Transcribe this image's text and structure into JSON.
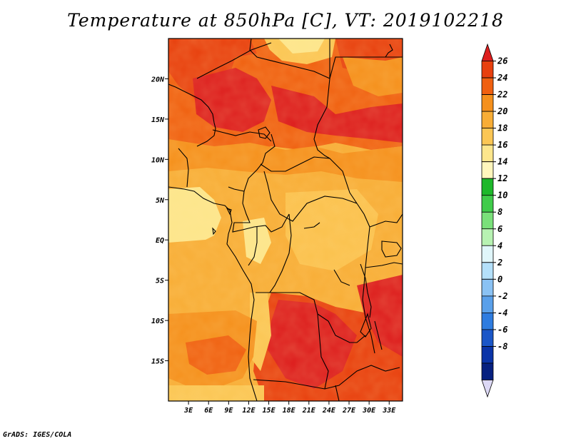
{
  "title": "Temperature at 850hPa [C], VT: 2019102218",
  "credit": "GrADS: IGES/COLA",
  "map": {
    "lon_range": [
      0,
      35
    ],
    "lat_range": [
      -20,
      25
    ],
    "variable": "Temperature at 850hPa",
    "units": "C",
    "valid_time": "2019102218",
    "x_ticks": [
      {
        "lon": 3,
        "label": "3E"
      },
      {
        "lon": 6,
        "label": "6E"
      },
      {
        "lon": 9,
        "label": "9E"
      },
      {
        "lon": 12,
        "label": "12E"
      },
      {
        "lon": 15,
        "label": "15E"
      },
      {
        "lon": 18,
        "label": "18E"
      },
      {
        "lon": 21,
        "label": "21E"
      },
      {
        "lon": 24,
        "label": "24E"
      },
      {
        "lon": 27,
        "label": "27E"
      },
      {
        "lon": 30,
        "label": "30E"
      },
      {
        "lon": 33,
        "label": "33E"
      }
    ],
    "y_ticks": [
      {
        "lat": 20,
        "label": "20N"
      },
      {
        "lat": 15,
        "label": "15N"
      },
      {
        "lat": 10,
        "label": "10N"
      },
      {
        "lat": 5,
        "label": "5N"
      },
      {
        "lat": 0,
        "label": "EQ"
      },
      {
        "lat": -5,
        "label": "5S"
      },
      {
        "lat": -10,
        "label": "10S"
      },
      {
        "lat": -15,
        "label": "15S"
      }
    ]
  },
  "colorbar": {
    "levels": [
      {
        "label": "26",
        "value": 26
      },
      {
        "label": "24",
        "value": 24
      },
      {
        "label": "22",
        "value": 22
      },
      {
        "label": "20",
        "value": 20
      },
      {
        "label": "18",
        "value": 18
      },
      {
        "label": "16",
        "value": 16
      },
      {
        "label": "14",
        "value": 14
      },
      {
        "label": "12",
        "value": 12
      },
      {
        "label": "10",
        "value": 10
      },
      {
        "label": "8",
        "value": 8
      },
      {
        "label": "6",
        "value": 6
      },
      {
        "label": "4",
        "value": 4
      },
      {
        "label": "2",
        "value": 2
      },
      {
        "label": "0",
        "value": 0
      },
      {
        "label": "-2",
        "value": -2
      },
      {
        "label": "-4",
        "value": -4
      },
      {
        "label": "-6",
        "value": -6
      },
      {
        "label": "-8",
        "value": -8
      }
    ],
    "colors_top_to_bottom": [
      "#dd1e1e",
      "#e8400e",
      "#f06010",
      "#f5901c",
      "#f8ad36",
      "#fbc654",
      "#fde68c",
      "#fff6bc",
      "#1db82a",
      "#40cc4a",
      "#7ae07a",
      "#b7f2b2",
      "#e0f6fa",
      "#b4e0fa",
      "#8ac2f4",
      "#5aa0ea",
      "#2e7ce0",
      "#1a56c8",
      "#0a34a8",
      "#062080",
      "#dcd8f5"
    ]
  }
}
